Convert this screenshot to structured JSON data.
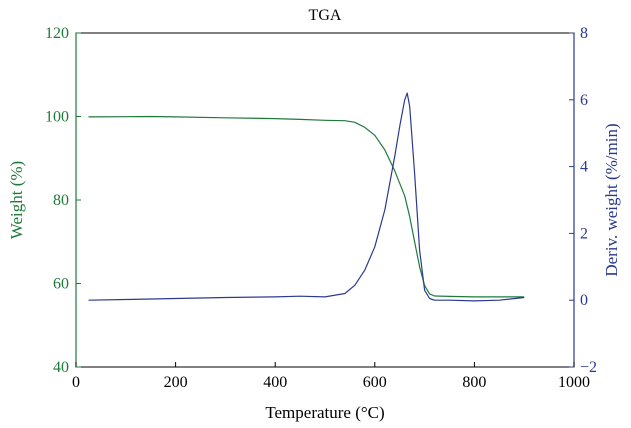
{
  "chart_data": {
    "type": "line",
    "title": "TGA",
    "xlabel": "Temperature (°C)",
    "xlim": [
      0,
      1000
    ],
    "xticks": [
      "0",
      "200",
      "400",
      "600",
      "800",
      "1000"
    ],
    "y_left": {
      "label": "Weight (%)",
      "lim": [
        40,
        120
      ],
      "ticks": [
        "40",
        "60",
        "80",
        "100",
        "120"
      ],
      "color": "#1f7a3a"
    },
    "y_right": {
      "label": "Deriv. weight (%/min)",
      "lim": [
        -2,
        8
      ],
      "ticks": [
        "−2",
        "0",
        "2",
        "4",
        "6",
        "8"
      ],
      "color": "#2b3a8f"
    },
    "series": [
      {
        "axis": "left",
        "color": "#1f7a3a",
        "x": [
          25,
          100,
          150,
          200,
          300,
          400,
          450,
          500,
          540,
          560,
          580,
          600,
          620,
          640,
          660,
          670,
          680,
          690,
          700,
          710,
          720,
          750,
          800,
          850,
          900
        ],
        "y": [
          99.9,
          99.95,
          100.0,
          99.9,
          99.7,
          99.5,
          99.3,
          99.1,
          99.0,
          98.6,
          97.4,
          95.5,
          92.0,
          87.0,
          81.0,
          76.0,
          70.0,
          64.0,
          59.5,
          57.5,
          57.0,
          56.9,
          56.8,
          56.8,
          56.8
        ]
      },
      {
        "axis": "right",
        "color": "#2b3a8f",
        "x": [
          25,
          100,
          200,
          300,
          400,
          450,
          500,
          540,
          560,
          580,
          600,
          620,
          640,
          650,
          660,
          665,
          670,
          680,
          690,
          700,
          710,
          720,
          750,
          800,
          850,
          900
        ],
        "y": [
          0.0,
          0.02,
          0.05,
          0.08,
          0.1,
          0.12,
          0.1,
          0.2,
          0.45,
          0.9,
          1.6,
          2.7,
          4.3,
          5.2,
          6.0,
          6.2,
          5.8,
          3.8,
          1.5,
          0.3,
          0.05,
          0.0,
          0.0,
          -0.02,
          0.0,
          0.08
        ]
      }
    ]
  }
}
